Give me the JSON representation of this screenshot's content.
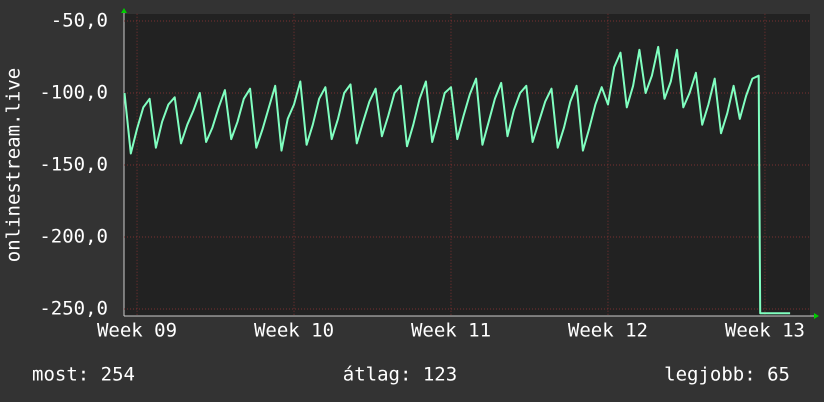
{
  "chart_data": {
    "type": "line",
    "y_label": "onlinestream.live",
    "x": [
      8.92,
      8.96,
      9,
      9.04,
      9.08,
      9.12,
      9.16,
      9.2,
      9.24,
      9.28,
      9.32,
      9.36,
      9.4,
      9.44,
      9.48,
      9.52,
      9.56,
      9.6,
      9.64,
      9.68,
      9.72,
      9.76,
      9.8,
      9.84,
      9.88,
      9.92,
      9.96,
      10,
      10.04,
      10.08,
      10.12,
      10.16,
      10.2,
      10.24,
      10.28,
      10.32,
      10.36,
      10.4,
      10.44,
      10.48,
      10.52,
      10.56,
      10.6,
      10.64,
      10.68,
      10.72,
      10.76,
      10.8,
      10.84,
      10.88,
      10.92,
      10.96,
      11,
      11.04,
      11.08,
      11.12,
      11.16,
      11.2,
      11.24,
      11.28,
      11.32,
      11.36,
      11.4,
      11.44,
      11.48,
      11.52,
      11.56,
      11.6,
      11.64,
      11.68,
      11.72,
      11.76,
      11.8,
      11.84,
      11.88,
      11.92,
      11.96,
      12,
      12.04,
      12.08,
      12.12,
      12.16,
      12.2,
      12.24,
      12.28,
      12.32,
      12.36,
      12.4,
      12.44,
      12.48,
      12.52,
      12.56,
      12.6,
      12.64,
      12.68,
      12.72,
      12.76,
      12.8,
      12.84,
      12.88,
      12.92,
      12.96,
      12.97,
      13.16
    ],
    "series": [
      {
        "color": "#80ffc0",
        "values": [
          -100,
          -142,
          -125,
          -110,
          -104,
          -138,
          -120,
          -108,
          -103,
          -135,
          -122,
          -112,
          -100,
          -134,
          -124,
          -110,
          -98,
          -132,
          -120,
          -104,
          -97,
          -138,
          -125,
          -110,
          -95,
          -140,
          -118,
          -108,
          -92,
          -136,
          -122,
          -104,
          -96,
          -132,
          -118,
          -100,
          -94,
          -135,
          -120,
          -106,
          -97,
          -130,
          -116,
          -100,
          -95,
          -137,
          -122,
          -104,
          -92,
          -134,
          -118,
          -100,
          -96,
          -132,
          -116,
          -101,
          -90,
          -136,
          -120,
          -104,
          -93,
          -130,
          -112,
          -100,
          -95,
          -134,
          -120,
          -106,
          -97,
          -138,
          -124,
          -106,
          -95,
          -140,
          -125,
          -108,
          -96,
          -108,
          -82,
          -72,
          -110,
          -95,
          -70,
          -100,
          -88,
          -68,
          -104,
          -92,
          -70,
          -110,
          -100,
          -86,
          -122,
          -108,
          -90,
          -128,
          -114,
          -95,
          -118,
          -102,
          -90,
          -88,
          -253,
          -253
        ]
      }
    ],
    "xlim": [
      8.917,
      13.287
    ],
    "xticks": [
      {
        "value": 9,
        "label": "Week 09"
      },
      {
        "value": 10,
        "label": "Week 10"
      },
      {
        "value": 11,
        "label": "Week 11"
      },
      {
        "value": 12,
        "label": "Week 12"
      },
      {
        "value": 13,
        "label": "Week 13"
      }
    ],
    "ylim": [
      -255,
      -45
    ],
    "yticks": [
      {
        "value": -50,
        "label": "-50,0"
      },
      {
        "value": -100,
        "label": "-100,0"
      },
      {
        "value": -150,
        "label": "-150,0"
      },
      {
        "value": -200,
        "label": "-200,0"
      },
      {
        "value": -250,
        "label": "-250,0"
      }
    ],
    "grid": true,
    "stats": [
      "most: 254",
      "átlag: 123",
      "legjobb: 65"
    ]
  }
}
